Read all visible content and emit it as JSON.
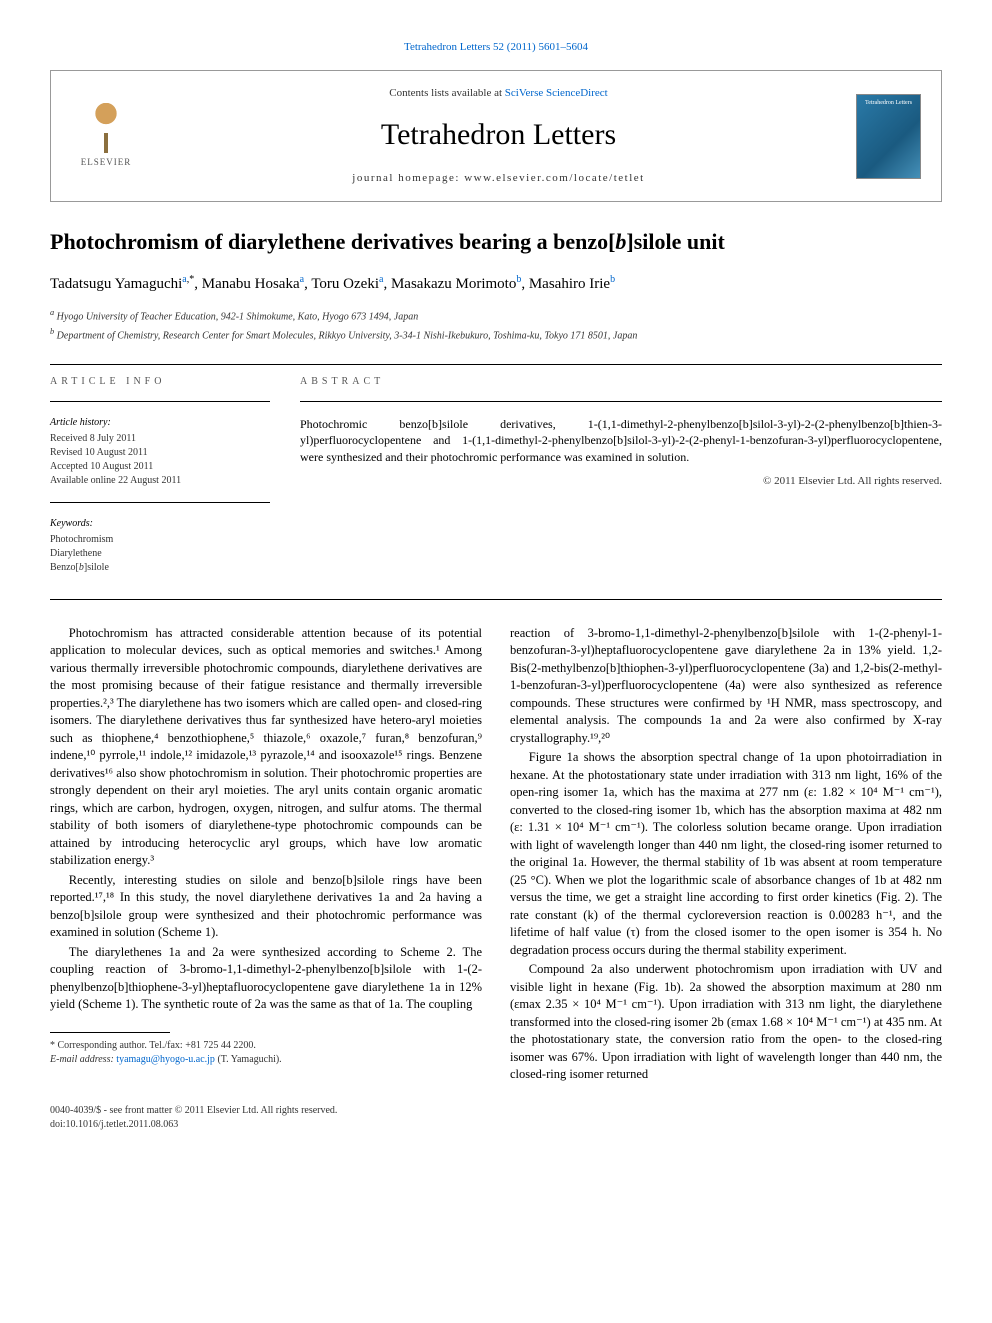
{
  "citation": "Tetrahedron Letters 52 (2011) 5601–5604",
  "header": {
    "contents_prefix": "Contents lists available at ",
    "contents_link": "SciVerse ScienceDirect",
    "journal": "Tetrahedron Letters",
    "homepage_prefix": "journal homepage: ",
    "homepage_url": "www.elsevier.com/locate/tetlet",
    "publisher_name": "ELSEVIER"
  },
  "title": "Photochromism of diarylethene derivatives bearing a benzo[b]silole unit",
  "authors": [
    {
      "name": "Tadatsugu Yamaguchi",
      "aff": "a",
      "corr": true
    },
    {
      "name": "Manabu Hosaka",
      "aff": "a",
      "corr": false
    },
    {
      "name": "Toru Ozeki",
      "aff": "a",
      "corr": false
    },
    {
      "name": "Masakazu Morimoto",
      "aff": "b",
      "corr": false
    },
    {
      "name": "Masahiro Irie",
      "aff": "b",
      "corr": false
    }
  ],
  "affiliations": {
    "a": "Hyogo University of Teacher Education, 942-1 Shimokume, Kato, Hyogo 673 1494, Japan",
    "b": "Department of Chemistry, Research Center for Smart Molecules, Rikkyo University, 3-34-1 Nishi-Ikebukuro, Toshima-ku, Tokyo 171 8501, Japan"
  },
  "info_label": "ARTICLE INFO",
  "abstract_label": "ABSTRACT",
  "history_title": "Article history:",
  "history": [
    "Received 8 July 2011",
    "Revised 10 August 2011",
    "Accepted 10 August 2011",
    "Available online 22 August 2011"
  ],
  "keywords_title": "Keywords:",
  "keywords": [
    "Photochromism",
    "Diarylethene",
    "Benzo[b]silole"
  ],
  "abstract": "Photochromic benzo[b]silole derivatives, 1-(1,1-dimethyl-2-phenylbenzo[b]silol-3-yl)-2-(2-phenylbenzo[b]thien-3-yl)perfluorocyclopentene and 1-(1,1-dimethyl-2-phenylbenzo[b]silol-3-yl)-2-(2-phenyl-1-benzofuran-3-yl)perfluorocyclopentene, were synthesized and their photochromic performance was examined in solution.",
  "abstract_copyright": "© 2011 Elsevier Ltd. All rights reserved.",
  "body": {
    "p1": "Photochromism has attracted considerable attention because of its potential application to molecular devices, such as optical memories and switches.¹ Among various thermally irreversible photochromic compounds, diarylethene derivatives are the most promising because of their fatigue resistance and thermally irreversible properties.²,³ The diarylethene has two isomers which are called open- and closed-ring isomers. The diarylethene derivatives thus far synthesized have hetero-aryl moieties such as thiophene,⁴ benzothiophene,⁵ thiazole,⁶ oxazole,⁷ furan,⁸ benzofuran,⁹ indene,¹⁰ pyrrole,¹¹ indole,¹² imidazole,¹³ pyrazole,¹⁴ and isooxazole¹⁵ rings. Benzene derivatives¹⁶ also show photochromism in solution. Their photochromic properties are strongly dependent on their aryl moieties. The aryl units contain organic aromatic rings, which are carbon, hydrogen, oxygen, nitrogen, and sulfur atoms. The thermal stability of both isomers of diarylethene-type photochromic compounds can be attained by introducing heterocyclic aryl groups, which have low aromatic stabilization energy.³",
    "p2": "Recently, interesting studies on silole and benzo[b]silole rings have been reported.¹⁷,¹⁸ In this study, the novel diarylethene derivatives 1a and 2a having a benzo[b]silole group were synthesized and their photochromic performance was examined in solution (Scheme 1).",
    "p3": "The diarylethenes 1a and 2a were synthesized according to Scheme 2. The coupling reaction of 3-bromo-1,1-dimethyl-2-phenylbenzo[b]silole with 1-(2-phenylbenzo[b]thiophene-3-yl)heptafluorocyclopentene gave diarylethene 1a in 12% yield (Scheme 1). The synthetic route of 2a was the same as that of 1a. The coupling",
    "p4": "reaction of 3-bromo-1,1-dimethyl-2-phenylbenzo[b]silole with 1-(2-phenyl-1-benzofuran-3-yl)heptafluorocyclopentene gave diarylethene 2a in 13% yield. 1,2-Bis(2-methylbenzo[b]thiophen-3-yl)perfluorocyclopentene (3a) and 1,2-bis(2-methyl-1-benzofuran-3-yl)perfluorocyclopentene (4a) were also synthesized as reference compounds. These structures were confirmed by ¹H NMR, mass spectroscopy, and elemental analysis. The compounds 1a and 2a were also confirmed by X-ray crystallography.¹⁹,²⁰",
    "p5": "Figure 1a shows the absorption spectral change of 1a upon photoirradiation in hexane. At the photostationary state under irradiation with 313 nm light, 16% of the open-ring isomer 1a, which has the maxima at 277 nm (ε: 1.82 × 10⁴ M⁻¹ cm⁻¹), converted to the closed-ring isomer 1b, which has the absorption maxima at 482 nm (ε: 1.31 × 10⁴ M⁻¹ cm⁻¹). The colorless solution became orange. Upon irradiation with light of wavelength longer than 440 nm light, the closed-ring isomer returned to the original 1a. However, the thermal stability of 1b was absent at room temperature (25 °C). When we plot the logarithmic scale of absorbance changes of 1b at 482 nm versus the time, we get a straight line according to first order kinetics (Fig. 2). The rate constant (k) of the thermal cycloreversion reaction is 0.00283 h⁻¹, and the lifetime of half value (τ) from the closed isomer to the open isomer is 354 h. No degradation process occurs during the thermal stability experiment.",
    "p6": "Compound 2a also underwent photochromism upon irradiation with UV and visible light in hexane (Fig. 1b). 2a showed the absorption maximum at 280 nm (εmax 2.35 × 10⁴ M⁻¹ cm⁻¹). Upon irradiation with 313 nm light, the diarylethene transformed into the closed-ring isomer 2b (εmax 1.68 × 10⁴ M⁻¹ cm⁻¹) at 435 nm. At the photostationary state, the conversion ratio from the open- to the closed-ring isomer was 67%. Upon irradiation with light of wavelength longer than 440 nm, the closed-ring isomer returned"
  },
  "footnote": {
    "corr_label": "Corresponding author. Tel./fax: +81 725 44 2200.",
    "email_label": "E-mail address:",
    "email": "tyamagu@hyogo-u.ac.jp",
    "email_suffix": "(T. Yamaguchi)."
  },
  "footer": {
    "line1": "0040-4039/$ - see front matter © 2011 Elsevier Ltd. All rights reserved.",
    "line2": "doi:10.1016/j.tetlet.2011.08.063"
  },
  "colors": {
    "link": "#0066cc",
    "text": "#000000",
    "muted": "#333333",
    "border": "#999999"
  }
}
